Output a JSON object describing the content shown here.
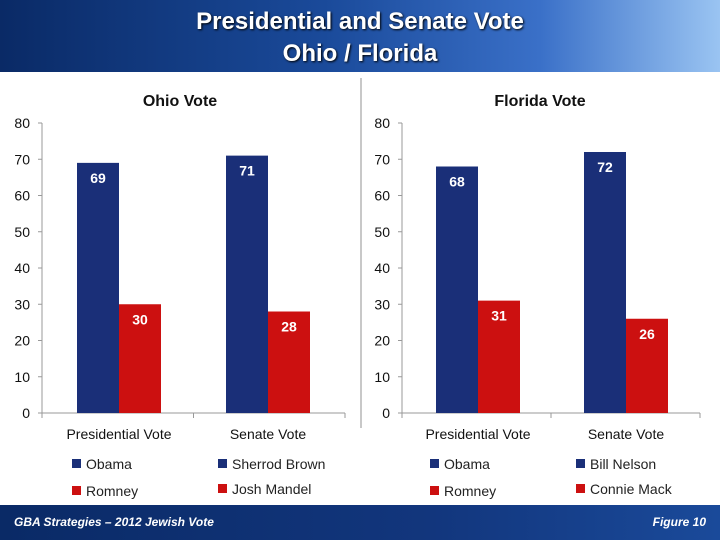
{
  "slide": {
    "title_line1": "Presidential and Senate Vote",
    "title_line2": "Ohio / Florida",
    "footer_left": "GBA Strategies – 2012 Jewish Vote",
    "footer_right": "Figure  10"
  },
  "colors": {
    "blue": "#1a2f78",
    "red": "#cc1010",
    "header_dark": "#0a2a66"
  },
  "chart_data": [
    {
      "type": "bar",
      "title": "Ohio Vote",
      "categories": [
        "Presidential Vote",
        "Senate Vote"
      ],
      "ylim": [
        0,
        80
      ],
      "yticks": [
        0,
        10,
        20,
        30,
        40,
        50,
        60,
        70,
        80
      ],
      "grid": false,
      "series": [
        {
          "names": [
            "Obama",
            "Sherrod Brown"
          ],
          "values": [
            69,
            71
          ],
          "color": "#1a2f78"
        },
        {
          "names": [
            "Romney",
            "Josh Mandel"
          ],
          "values": [
            30,
            28
          ],
          "color": "#cc1010"
        }
      ]
    },
    {
      "type": "bar",
      "title": "Florida Vote",
      "categories": [
        "Presidential Vote",
        "Senate Vote"
      ],
      "ylim": [
        0,
        80
      ],
      "yticks": [
        0,
        10,
        20,
        30,
        40,
        50,
        60,
        70,
        80
      ],
      "grid": false,
      "series": [
        {
          "names": [
            "Obama",
            "Bill Nelson"
          ],
          "values": [
            68,
            72
          ],
          "color": "#1a2f78"
        },
        {
          "names": [
            "Romney",
            "Connie Mack"
          ],
          "values": [
            31,
            26
          ],
          "color": "#cc1010"
        }
      ]
    }
  ]
}
